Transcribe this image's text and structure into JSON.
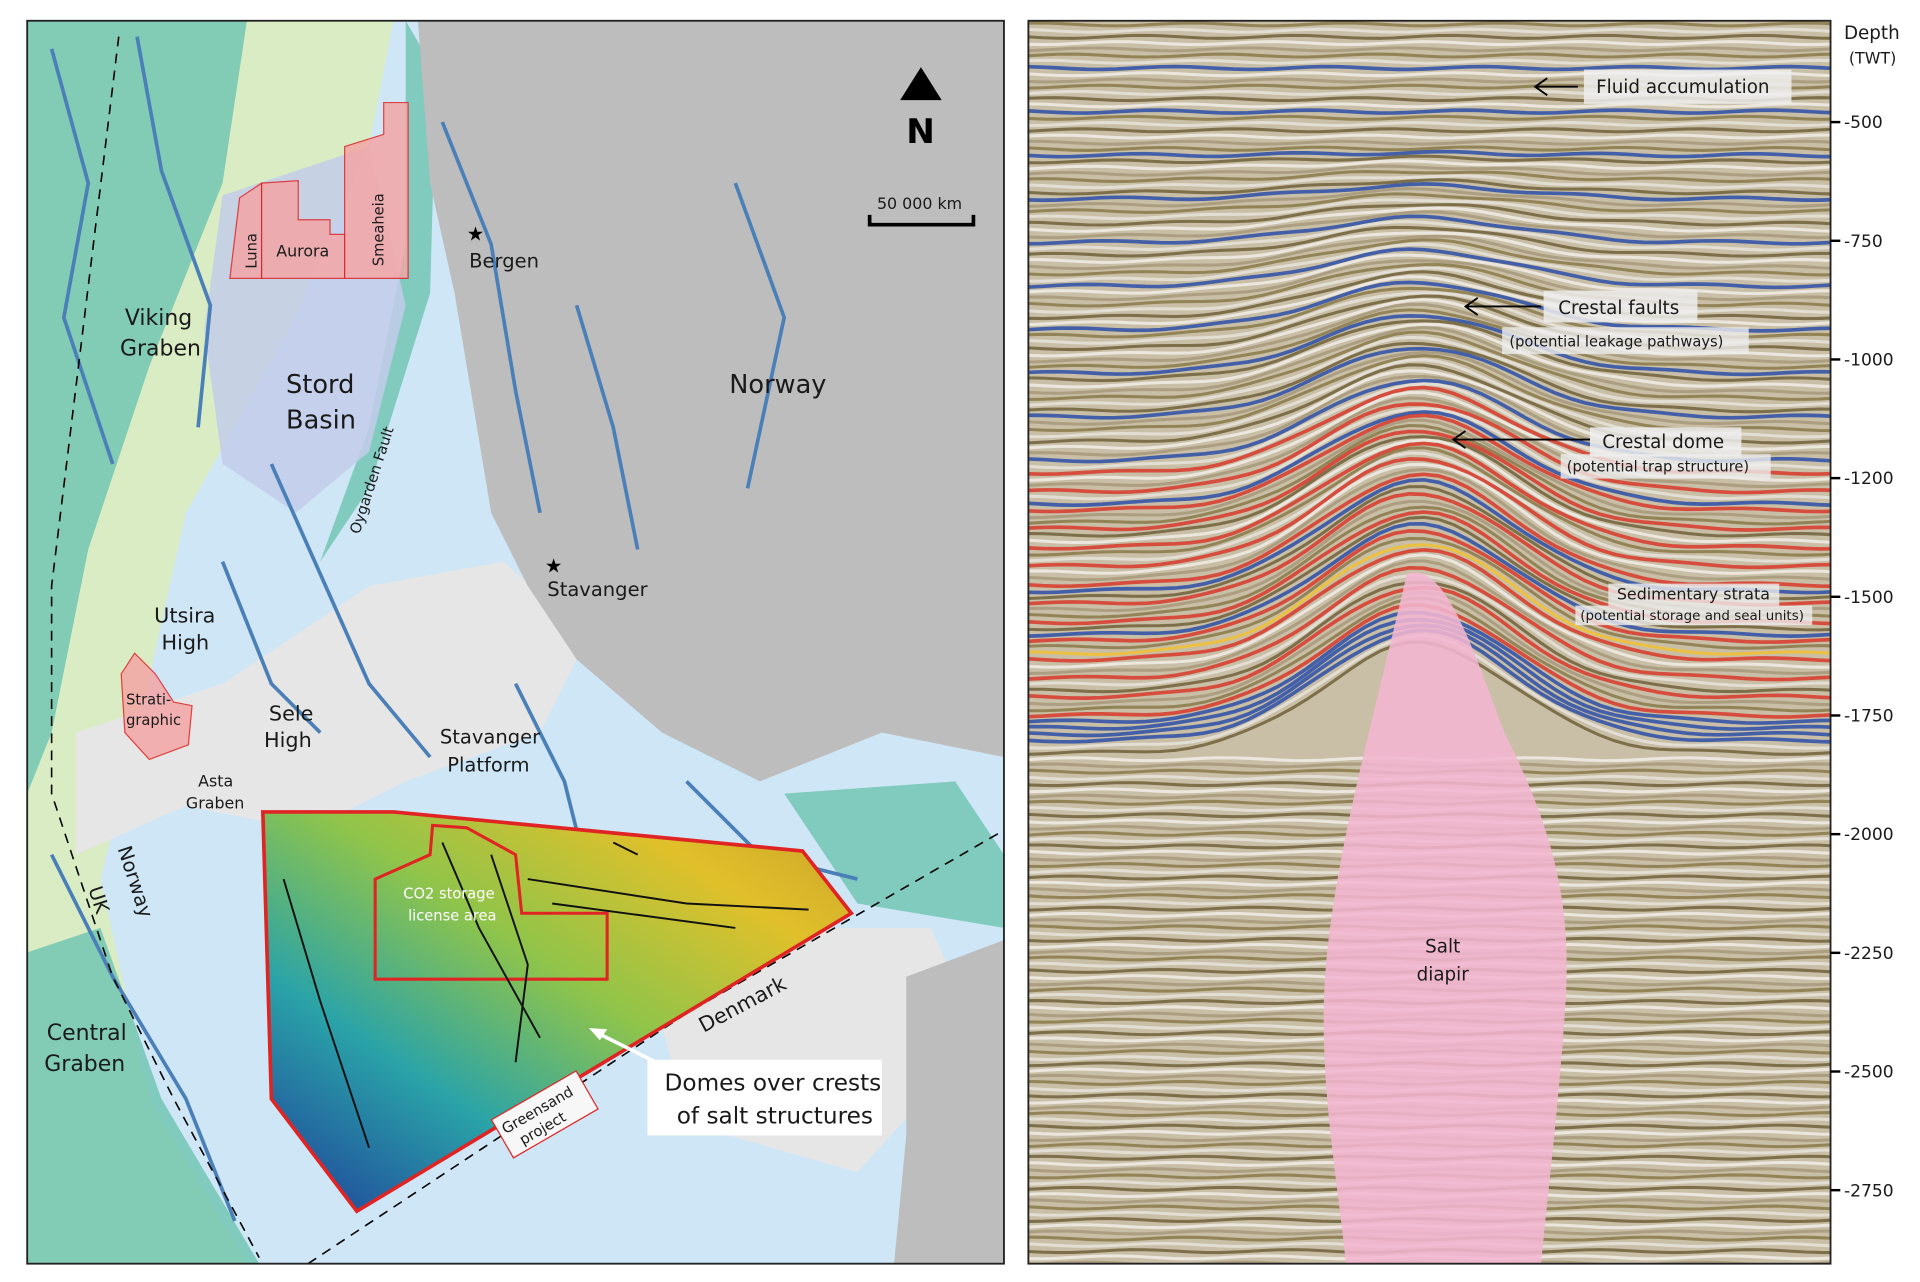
{
  "map": {
    "north_label": "N",
    "scale_label": "50 000 km",
    "labels": {
      "viking_graben": [
        "Viking",
        "Graben"
      ],
      "stord_basin": [
        "Stord",
        "Basin"
      ],
      "oygarden_fault": "Oygarden Fault",
      "utsira_high": [
        "Utsira",
        "High"
      ],
      "sele_high": [
        "Sele",
        "High"
      ],
      "asta_graben": [
        "Asta",
        "Graben"
      ],
      "stavanger_platform": [
        "Stavanger",
        "Platform"
      ],
      "central_graben": [
        "Central",
        "Graben"
      ],
      "norway_border": "Norway",
      "uk_border": "UK",
      "denmark": "Denmark",
      "norway_land": "Norway",
      "bergen": "Bergen",
      "stavanger": "Stavanger",
      "luna": "Luna",
      "aurora": "Aurora",
      "smeaheia": "Smeaheia",
      "stratigraphic": [
        "Strati-",
        "graphic"
      ],
      "co2_license": [
        "CO2 storage",
        "license area"
      ],
      "greensand": [
        "Greensand",
        "project"
      ],
      "domes_callout": [
        "Domes over crests",
        "of salt structures"
      ]
    },
    "colors": {
      "sea": "#cfe6f6",
      "land": "#bdbdbd",
      "shelf_green": "#6cc3b0",
      "pale_green": "#d9ecc4",
      "faults": "#4a7fb8",
      "license_red": "#e02424"
    }
  },
  "seismic": {
    "axis_title": "Depth",
    "axis_subtitle": "(TWT)",
    "ticks": [
      "-500",
      "-750",
      "-1000",
      "-1200",
      "-1500",
      "-1750",
      "-2000",
      "-2250",
      "-2500",
      "-2750"
    ],
    "annotations": {
      "fluid": "Fluid accumulation",
      "faults": "Crestal faults",
      "faults_sub": "(potential leakage pathways)",
      "dome": "Crestal dome",
      "dome_sub": "(potential trap structure)",
      "strata": "Sedimentary strata",
      "strata_sub": "(potential storage and seal units)",
      "salt": [
        "Salt",
        "diapir"
      ]
    },
    "colors": {
      "salt": "#f2b6d0",
      "red_reflector": "#d8382a",
      "blue_reflector": "#2b4fa8"
    }
  }
}
